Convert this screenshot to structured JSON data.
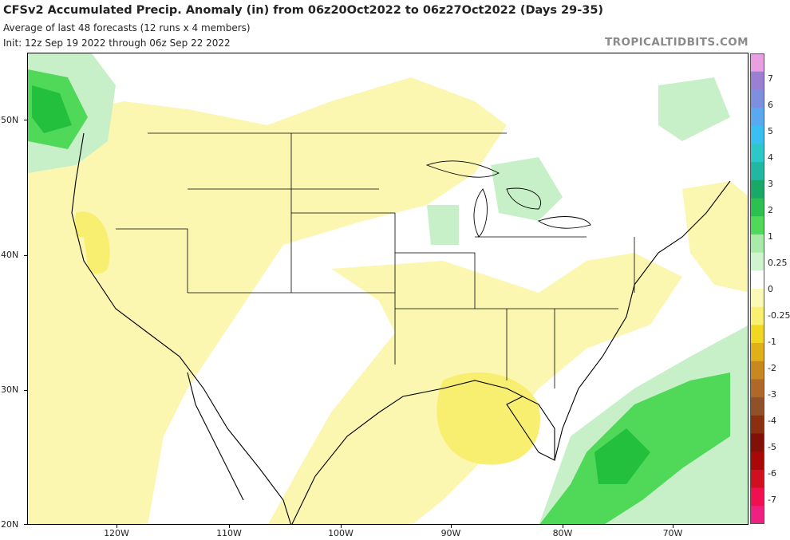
{
  "header": {
    "title": "CFSv2 Accumulated Precip. Anomaly (in) from 06z20Oct2022 to 06z27Oct2022 (Days 29-35)",
    "subtitle1": "Average of last 48 forecasts (12 runs x 4 members)",
    "subtitle2": "Init: 12z Sep 19 2022 through 06z Sep 22 2022",
    "brand": "TROPICALTIDBITS.COM"
  },
  "axes": {
    "lat_labels": [
      "50N",
      "40N",
      "30N",
      "20N"
    ],
    "lon_labels": [
      "120W",
      "110W",
      "100W",
      "90W",
      "80W",
      "70W"
    ]
  },
  "colorbar": {
    "labels": [
      "7",
      "6",
      "5",
      "4",
      "3",
      "2",
      "1",
      "0.25",
      "0",
      "-0.25",
      "-1",
      "-2",
      "-3",
      "-4",
      "-5",
      "-6",
      "-7"
    ],
    "colors": [
      "#e8a0e0",
      "#9a7fd2",
      "#7d90e0",
      "#5aa8f0",
      "#3ac0f0",
      "#2cc8c8",
      "#20b8a0",
      "#18a868",
      "#2cc050",
      "#50d858",
      "#a8eaa8",
      "#d0f4d0",
      "#ffffff",
      "#fcf8b8",
      "#f8f070",
      "#f0d820",
      "#e0b018",
      "#c88820",
      "#b06828",
      "#905028",
      "#8a3010",
      "#801008",
      "#a80808",
      "#d01020",
      "#f01050",
      "#f02080"
    ],
    "accent_colors": {
      "anomaly_dry_light": "#fbf6b0",
      "anomaly_dry": "#f8ee70",
      "anomaly_wet_light": "#c8f0c8",
      "anomaly_wet": "#50d858",
      "anomaly_wet_strong": "#22c03c"
    }
  },
  "map": {
    "region": "Contiguous United States, southern Canada, Mexico, Caribbean",
    "lon_range": [
      -127,
      -63
    ],
    "lat_range": [
      20,
      55
    ]
  }
}
